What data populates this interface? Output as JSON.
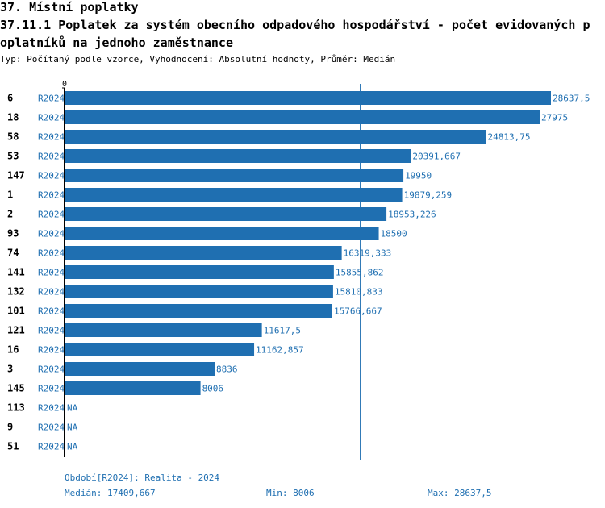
{
  "header": {
    "section": "37. Místní poplatky",
    "indicator_line1": "37.11.1 Poplatek za systém obecního odpadového hospodářství - počet evidovaných p",
    "indicator_line2": "oplatníků na jednoho zaměstnance",
    "subtitle": "Typ: Počítaný podle vzorce, Vyhodnocení: Absolutní hodnoty, Průměr: Medián"
  },
  "chart_data": {
    "type": "bar",
    "orientation": "horizontal",
    "axis_min_label": "0",
    "xlim": [
      0,
      28637.5
    ],
    "median_line": 17409.667,
    "colors": {
      "bar": "#1f6fb1",
      "median_line": "#1f6fb1",
      "value_label": "#1f6fb1",
      "period_label": "#1f6fb1",
      "axis": "#000000"
    },
    "rows": [
      {
        "id": "6",
        "period": "R2024",
        "value": 28637.5,
        "label": "28637,5"
      },
      {
        "id": "18",
        "period": "R2024",
        "value": 27975,
        "label": "27975"
      },
      {
        "id": "58",
        "period": "R2024",
        "value": 24813.75,
        "label": "24813,75"
      },
      {
        "id": "53",
        "period": "R2024",
        "value": 20391.667,
        "label": "20391,667"
      },
      {
        "id": "147",
        "period": "R2024",
        "value": 19950,
        "label": "19950"
      },
      {
        "id": "1",
        "period": "R2024",
        "value": 19879.259,
        "label": "19879,259"
      },
      {
        "id": "2",
        "period": "R2024",
        "value": 18953.226,
        "label": "18953,226"
      },
      {
        "id": "93",
        "period": "R2024",
        "value": 18500,
        "label": "18500"
      },
      {
        "id": "74",
        "period": "R2024",
        "value": 16319.333,
        "label": "16319,333"
      },
      {
        "id": "141",
        "period": "R2024",
        "value": 15855.862,
        "label": "15855,862"
      },
      {
        "id": "132",
        "period": "R2024",
        "value": 15810.833,
        "label": "15810,833"
      },
      {
        "id": "101",
        "period": "R2024",
        "value": 15766.667,
        "label": "15766,667"
      },
      {
        "id": "121",
        "period": "R2024",
        "value": 11617.5,
        "label": "11617,5"
      },
      {
        "id": "16",
        "period": "R2024",
        "value": 11162.857,
        "label": "11162,857"
      },
      {
        "id": "3",
        "period": "R2024",
        "value": 8836,
        "label": "8836"
      },
      {
        "id": "145",
        "period": "R2024",
        "value": 8006,
        "label": "8006"
      },
      {
        "id": "113",
        "period": "R2024",
        "value": null,
        "label": "NA"
      },
      {
        "id": "9",
        "period": "R2024",
        "value": null,
        "label": "NA"
      },
      {
        "id": "51",
        "period": "R2024",
        "value": null,
        "label": "NA"
      }
    ]
  },
  "footer": {
    "period_note": "Období[R2024]: Realita - 2024",
    "median": "Medián: 17409,667",
    "min": "Min: 8006",
    "max": "Max: 28637,5"
  }
}
